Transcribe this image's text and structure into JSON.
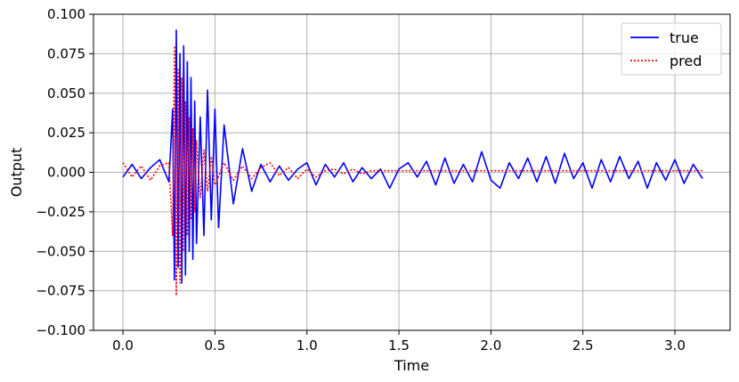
{
  "chart_data": {
    "type": "line",
    "title": "",
    "xlabel": "Time",
    "ylabel": "Output",
    "xlim": [
      -0.16,
      3.3
    ],
    "ylim": [
      -0.1,
      0.1
    ],
    "x_ticks": [
      0.0,
      0.5,
      1.0,
      1.5,
      2.0,
      2.5,
      3.0
    ],
    "x_tick_labels": [
      "0.0",
      "0.5",
      "1.0",
      "1.5",
      "2.0",
      "2.5",
      "3.0"
    ],
    "y_ticks": [
      -0.1,
      -0.075,
      -0.05,
      -0.025,
      0.0,
      0.025,
      0.05,
      0.075,
      0.1
    ],
    "y_tick_labels": [
      "−0.100",
      "−0.075",
      "−0.050",
      "−0.025",
      "0.000",
      "0.025",
      "0.050",
      "0.075",
      "0.100"
    ],
    "grid": true,
    "legend_position": "top-right",
    "series": [
      {
        "name": "true",
        "color": "#0000ff",
        "style": "solid",
        "x": [
          0.0,
          0.05,
          0.1,
          0.15,
          0.2,
          0.25,
          0.27,
          0.28,
          0.29,
          0.3,
          0.31,
          0.32,
          0.33,
          0.34,
          0.35,
          0.36,
          0.37,
          0.38,
          0.39,
          0.4,
          0.42,
          0.44,
          0.46,
          0.48,
          0.5,
          0.52,
          0.55,
          0.6,
          0.65,
          0.7,
          0.75,
          0.8,
          0.85,
          0.9,
          0.95,
          1.0,
          1.05,
          1.1,
          1.15,
          1.2,
          1.25,
          1.3,
          1.35,
          1.4,
          1.45,
          1.5,
          1.55,
          1.6,
          1.65,
          1.7,
          1.75,
          1.8,
          1.85,
          1.9,
          1.95,
          2.0,
          2.05,
          2.1,
          2.15,
          2.2,
          2.25,
          2.3,
          2.35,
          2.4,
          2.45,
          2.5,
          2.55,
          2.6,
          2.65,
          2.7,
          2.75,
          2.8,
          2.85,
          2.9,
          2.95,
          3.0,
          3.05,
          3.1,
          3.15
        ],
        "values": [
          -0.003,
          0.005,
          -0.004,
          0.003,
          0.008,
          -0.006,
          0.04,
          -0.068,
          0.09,
          -0.06,
          0.075,
          -0.07,
          0.08,
          -0.065,
          0.07,
          -0.05,
          0.06,
          -0.055,
          0.045,
          -0.045,
          0.035,
          -0.04,
          0.052,
          -0.03,
          0.04,
          -0.035,
          0.03,
          -0.02,
          0.015,
          -0.012,
          0.005,
          -0.006,
          0.004,
          -0.005,
          0.002,
          0.006,
          -0.008,
          0.005,
          -0.003,
          0.006,
          -0.006,
          0.003,
          -0.004,
          0.002,
          -0.01,
          0.002,
          0.006,
          -0.003,
          0.007,
          -0.008,
          0.009,
          -0.007,
          0.005,
          -0.006,
          0.013,
          -0.005,
          -0.01,
          0.006,
          -0.004,
          0.009,
          -0.006,
          0.01,
          -0.007,
          0.012,
          -0.004,
          0.006,
          -0.01,
          0.008,
          -0.006,
          0.01,
          -0.004,
          0.007,
          -0.01,
          0.006,
          -0.005,
          0.008,
          -0.007,
          0.005,
          -0.004
        ]
      },
      {
        "name": "pred",
        "color": "#ff0000",
        "style": "dotted",
        "x": [
          0.0,
          0.05,
          0.1,
          0.15,
          0.2,
          0.25,
          0.27,
          0.28,
          0.29,
          0.3,
          0.31,
          0.32,
          0.33,
          0.34,
          0.35,
          0.36,
          0.37,
          0.38,
          0.39,
          0.4,
          0.42,
          0.44,
          0.46,
          0.48,
          0.5,
          0.55,
          0.6,
          0.65,
          0.7,
          0.75,
          0.8,
          0.85,
          0.9,
          0.95,
          1.0,
          1.05,
          1.1,
          1.15,
          1.2,
          1.25,
          1.3,
          1.35,
          1.4,
          1.5,
          1.6,
          1.8,
          2.0,
          2.2,
          2.4,
          2.6,
          2.8,
          3.0,
          3.15
        ],
        "values": [
          0.006,
          -0.003,
          0.004,
          -0.005,
          0.004,
          0.006,
          -0.04,
          0.08,
          -0.078,
          0.065,
          -0.07,
          0.06,
          -0.05,
          0.045,
          -0.04,
          0.035,
          -0.03,
          0.028,
          -0.025,
          0.02,
          -0.016,
          0.014,
          -0.012,
          0.01,
          -0.008,
          0.006,
          -0.005,
          0.004,
          -0.004,
          0.003,
          0.006,
          -0.002,
          0.003,
          -0.004,
          0.002,
          -0.003,
          0.001,
          0.002,
          -0.001,
          0.002,
          -0.001,
          0.001,
          0.001,
          0.001,
          0.001,
          0.001,
          0.001,
          0.001,
          0.001,
          0.001,
          0.001,
          0.001,
          0.001
        ]
      }
    ]
  }
}
